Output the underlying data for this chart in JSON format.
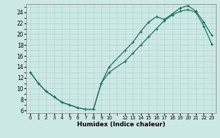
{
  "xlabel": "Humidex (Indice chaleur)",
  "bg_color": "#cce8e4",
  "grid_color": "#aad0ca",
  "line_color": "#1a6b5a",
  "xlim": [
    -0.5,
    23.5
  ],
  "ylim": [
    5.5,
    25.5
  ],
  "xticks": [
    0,
    1,
    2,
    3,
    4,
    5,
    6,
    7,
    8,
    9,
    10,
    12,
    13,
    14,
    15,
    16,
    17,
    18,
    19,
    20,
    21,
    22,
    23
  ],
  "yticks": [
    6,
    8,
    10,
    12,
    14,
    16,
    18,
    20,
    22,
    24
  ],
  "line1_x": [
    0,
    1,
    2,
    3,
    4,
    5,
    6,
    7,
    8,
    9,
    10,
    12,
    13,
    14,
    15,
    16,
    17,
    18,
    19,
    20,
    21,
    22,
    23
  ],
  "line1_y": [
    13,
    11,
    9.5,
    8.5,
    7.5,
    7,
    6.5,
    6.2,
    6.2,
    11,
    14,
    17,
    18.5,
    20.5,
    22.2,
    23.2,
    22.7,
    23.7,
    24.8,
    25.2,
    24.2,
    22.2,
    19.8
  ],
  "line2_x": [
    0,
    1,
    2,
    3,
    4,
    5,
    6,
    7,
    8,
    9,
    10,
    12,
    13,
    14,
    15,
    16,
    17,
    18,
    19,
    20,
    21,
    22,
    23
  ],
  "line2_y": [
    13,
    11,
    9.5,
    8.5,
    7.5,
    7,
    6.5,
    6.2,
    6.2,
    11,
    13,
    15,
    16.5,
    18,
    19.5,
    21,
    22.5,
    23.5,
    24.2,
    24.5,
    24,
    21.5,
    18.2
  ]
}
